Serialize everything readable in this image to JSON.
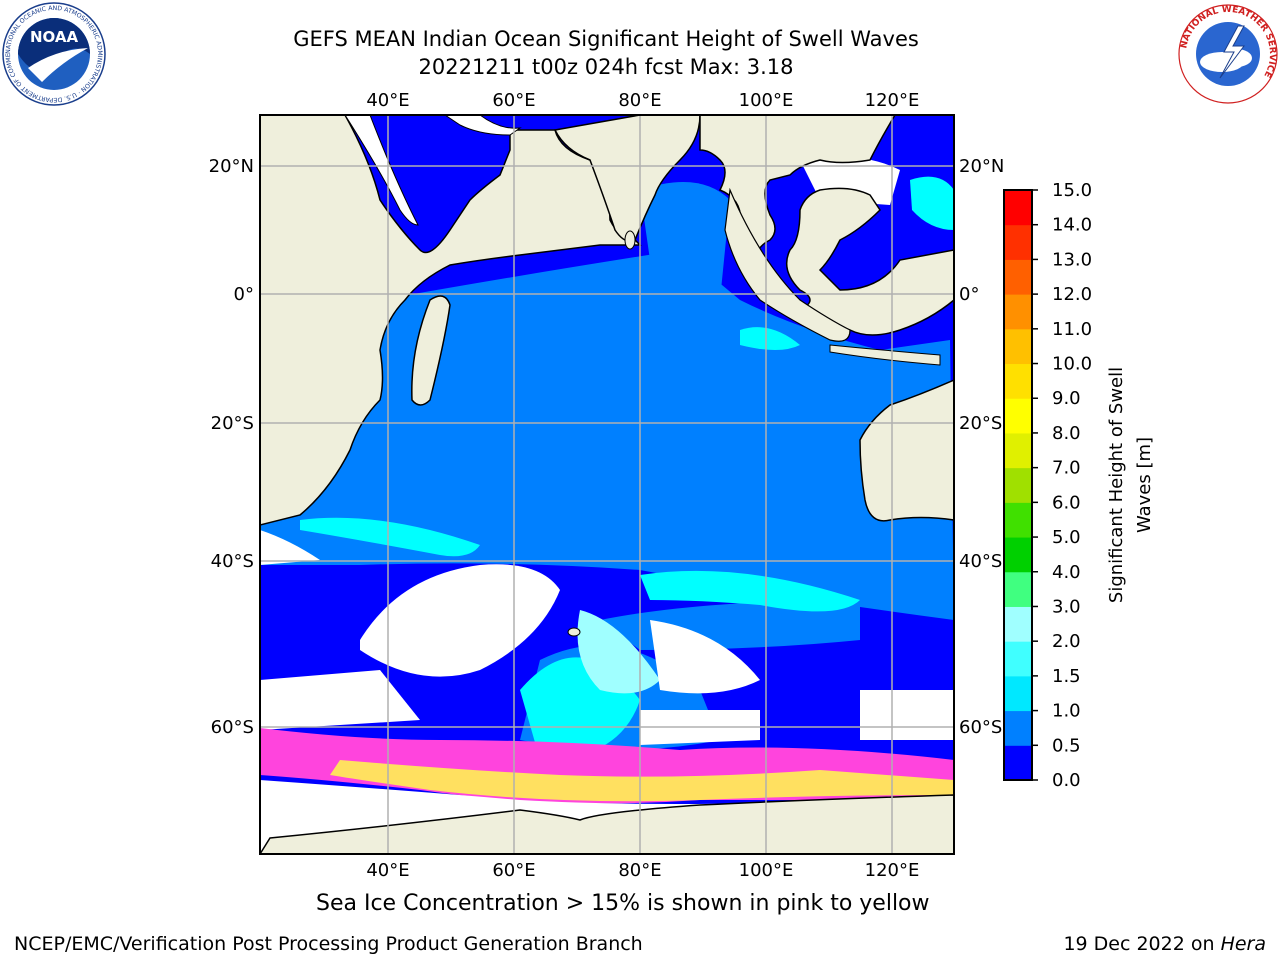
{
  "header": {
    "title_line1": "GEFS MEAN Indian Ocean Significant Height of Swell Waves",
    "title_line2": "20221211 t00z 024h fcst   Max: 3.18"
  },
  "logos": {
    "left": {
      "icon": "noaa-logo",
      "text": "NOAA",
      "ring_text": "NATIONAL OCEANIC AND ATMOSPHERIC ADMINISTRATION · U.S. DEPARTMENT OF COMMERCE"
    },
    "right": {
      "icon": "nws-logo",
      "ring_text": "NATIONAL WEATHER SERVICE"
    }
  },
  "map": {
    "lon_labels": [
      "40°E",
      "60°E",
      "80°E",
      "100°E",
      "120°E"
    ],
    "lat_labels": [
      "20°N",
      "0°",
      "20°S",
      "40°S",
      "60°S"
    ],
    "extent": {
      "lon": [
        20,
        130
      ],
      "lat": [
        -70,
        28
      ]
    },
    "grid": true,
    "colors": {
      "land": "#efefdc",
      "ocean_low": "#0000ff",
      "ocean_mid": "#0080ff",
      "ocean_high": "#00ffff",
      "ocean_peak": "#a0ffff",
      "ice_low": "#ff44dd",
      "ice_high": "#ffe060",
      "no_data": "#ffffff"
    }
  },
  "colorbar": {
    "label_line1": "Significant Height of Swell",
    "label_line2": "Waves [m]",
    "ticks": [
      "0.0",
      "0.5",
      "1.0",
      "1.5",
      "2.0",
      "3.0",
      "4.0",
      "5.0",
      "6.0",
      "7.0",
      "8.0",
      "9.0",
      "10.0",
      "11.0",
      "12.0",
      "13.0",
      "14.0",
      "15.0"
    ],
    "colors": [
      "#0000ff",
      "#0080ff",
      "#00e8ff",
      "#40ffff",
      "#a0ffff",
      "#40ff80",
      "#00d000",
      "#40e000",
      "#a0e000",
      "#e0f000",
      "#ffff00",
      "#ffe000",
      "#ffc000",
      "#ff9000",
      "#ff6000",
      "#ff3000",
      "#ff0000"
    ]
  },
  "footer": {
    "ice_note": "Sea Ice Concentration > 15% is shown in pink to yellow",
    "branch": "NCEP/EMC/Verification Post Processing Product Generation Branch",
    "date": "19 Dec 2022 on ",
    "machine": "Hera"
  }
}
